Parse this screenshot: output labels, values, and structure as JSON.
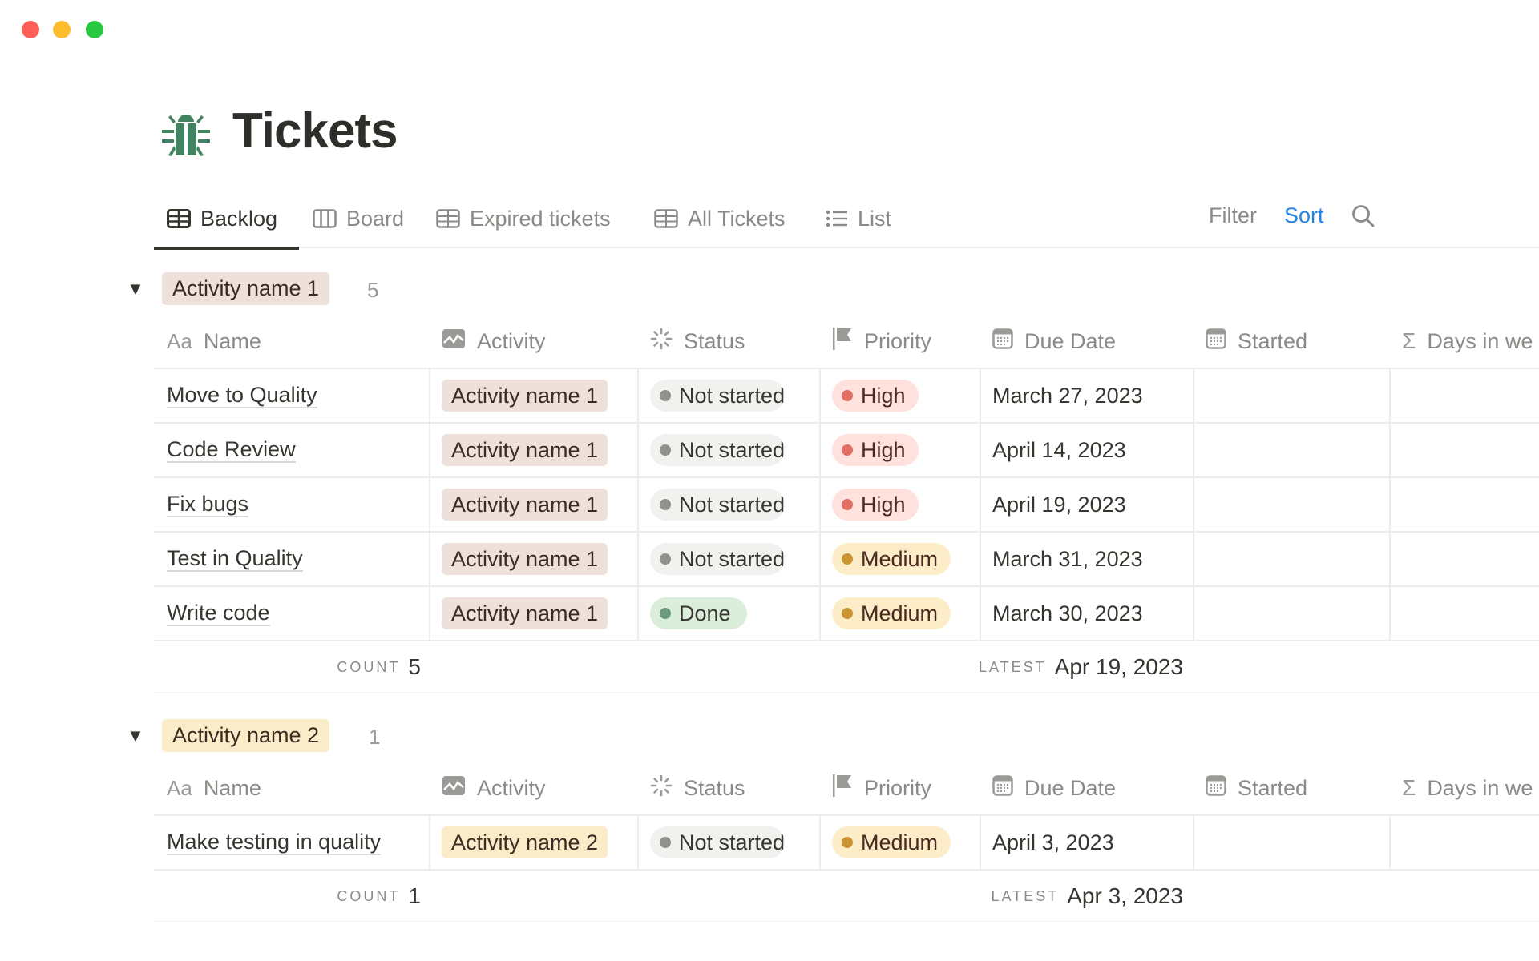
{
  "window": {
    "controls": [
      {
        "name": "close",
        "color": "#ff5f57"
      },
      {
        "name": "minimize",
        "color": "#febc2e"
      },
      {
        "name": "maximize",
        "color": "#28c840"
      }
    ]
  },
  "page": {
    "title": "Tickets",
    "icon": "bug-icon",
    "icon_color": "#448361"
  },
  "tabs": [
    {
      "label": "Backlog",
      "icon": "table-icon",
      "active": true
    },
    {
      "label": "Board",
      "icon": "board-icon"
    },
    {
      "label": "Expired tickets",
      "icon": "table-icon"
    },
    {
      "label": "All Tickets",
      "icon": "table-icon"
    },
    {
      "label": "List",
      "icon": "list-icon"
    }
  ],
  "toolbar": {
    "filter": "Filter",
    "sort": "Sort",
    "sort_color": "#2383e2",
    "search_icon": "search-icon"
  },
  "columns": [
    {
      "label": "Name",
      "icon": "Aa"
    },
    {
      "label": "Activity",
      "icon": "activity-icon"
    },
    {
      "label": "Status",
      "icon": "status-icon"
    },
    {
      "label": "Priority",
      "icon": "flag-icon"
    },
    {
      "label": "Due Date",
      "icon": "calendar-icon"
    },
    {
      "label": "Started",
      "icon": "calendar-icon"
    },
    {
      "label": "Days in we",
      "icon": "sigma-icon"
    }
  ],
  "colors": {
    "Activity name 1": "#eee0da",
    "Activity name 2": "#fbecc9",
    "Not started": {
      "bg": "#f1f1ef",
      "dot": "#91918e"
    },
    "Done": {
      "bg": "#dbeddb",
      "dot": "#6c9b7d"
    },
    "High": {
      "bg": "#ffe2dd",
      "dot": "#e16f64"
    },
    "Medium": {
      "bg": "#fdecc8",
      "dot": "#cb9433"
    }
  },
  "groups": [
    {
      "label": "Activity name 1",
      "count": "5",
      "rows": [
        {
          "name": "Move to Quality",
          "activity": "Activity name 1",
          "status": "Not started",
          "priority": "High",
          "due": "March 27, 2023",
          "started": "",
          "days": ""
        },
        {
          "name": "Code Review",
          "activity": "Activity name 1",
          "status": "Not started",
          "priority": "High",
          "due": "April 14, 2023",
          "started": "",
          "days": ""
        },
        {
          "name": "Fix bugs",
          "activity": "Activity name 1",
          "status": "Not started",
          "priority": "High",
          "due": "April 19, 2023",
          "started": "",
          "days": ""
        },
        {
          "name": "Test in Quality",
          "activity": "Activity name 1",
          "status": "Not started",
          "priority": "Medium",
          "due": "March 31, 2023",
          "started": "",
          "days": ""
        },
        {
          "name": "Write code",
          "activity": "Activity name 1",
          "status": "Done",
          "priority": "Medium",
          "due": "March 30, 2023",
          "started": "",
          "days": ""
        }
      ],
      "footer": {
        "count_label": "COUNT",
        "count": "5",
        "latest_label": "LATEST",
        "latest": "Apr 19, 2023"
      }
    },
    {
      "label": "Activity name 2",
      "count": "1",
      "rows": [
        {
          "name": "Make testing in quality",
          "activity": "Activity name 2",
          "status": "Not started",
          "priority": "Medium",
          "due": "April 3, 2023",
          "started": "",
          "days": ""
        }
      ],
      "footer": {
        "count_label": "COUNT",
        "count": "1",
        "latest_label": "LATEST",
        "latest": "Apr 3, 2023"
      }
    }
  ]
}
